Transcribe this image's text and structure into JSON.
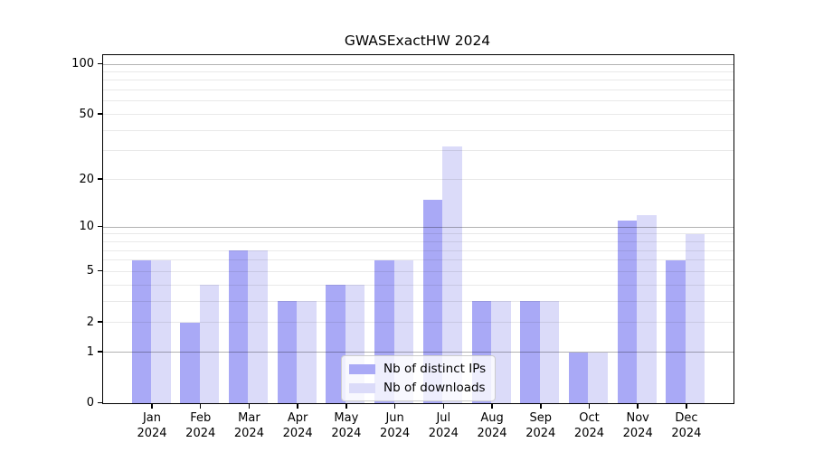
{
  "figure": {
    "background": "#ffffff"
  },
  "chart_data": {
    "type": "bar",
    "title": "GWASExactHW 2024",
    "categories": [
      "Jan",
      "Feb",
      "Mar",
      "Apr",
      "May",
      "Jun",
      "Jul",
      "Aug",
      "Sep",
      "Oct",
      "Nov",
      "Dec"
    ],
    "year_label": "2024",
    "series": [
      {
        "name": "Nb of distinct IPs",
        "color": "#a9a9f6",
        "values": [
          6,
          2,
          7,
          3,
          4,
          6,
          15,
          3,
          3,
          1,
          11,
          6
        ]
      },
      {
        "name": "Nb of downloads",
        "color": "#dbdbf9",
        "values": [
          6,
          4,
          7,
          3,
          4,
          6,
          32,
          3,
          3,
          1,
          12,
          9
        ]
      }
    ],
    "y_axis": {
      "scale": "log10(1+x)",
      "ticks": [
        0,
        1,
        2,
        5,
        10,
        20,
        50,
        100
      ],
      "major_gridlines": [
        1,
        10,
        100
      ],
      "minor_gridlines": [
        2,
        3,
        4,
        5,
        6,
        7,
        8,
        9,
        20,
        30,
        40,
        50,
        60,
        70,
        80,
        90
      ],
      "range_max": 100
    },
    "legend": {
      "position": "inside-bottom-center"
    },
    "grid": true
  }
}
